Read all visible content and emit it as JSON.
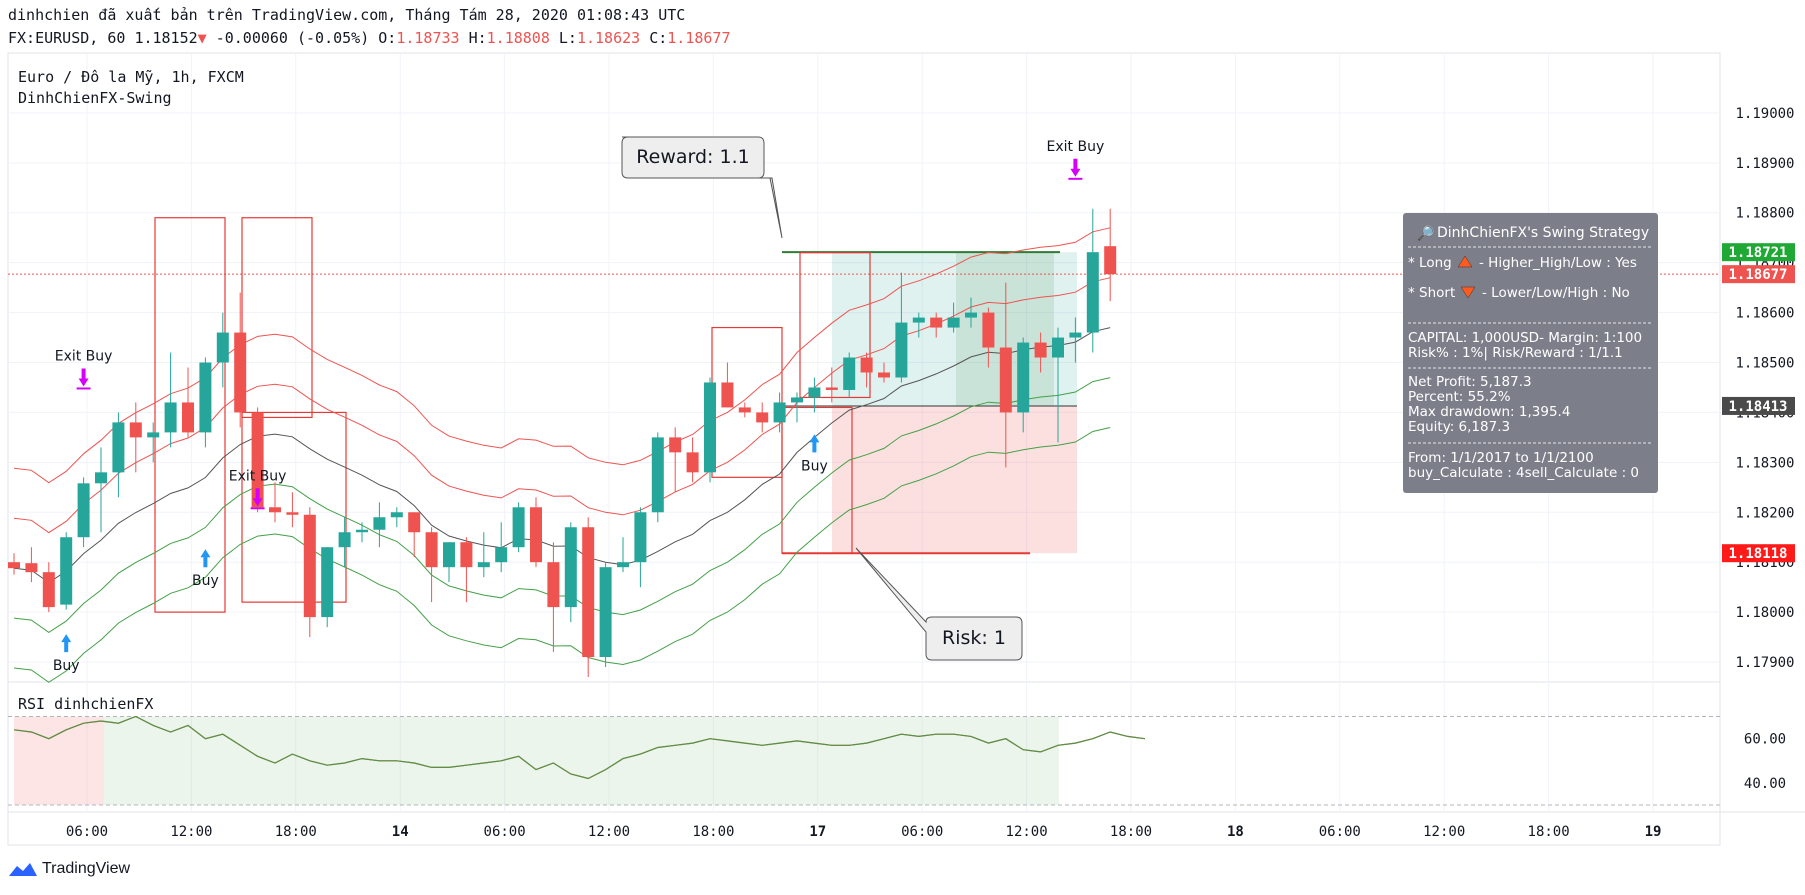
{
  "header": {
    "publish_line": "dinhchien đã xuất bản trên TradingView.com, Tháng Tám 28, 2020 01:08:43 UTC",
    "symbol": "FX:EURUSD, 60",
    "last": "1.18152",
    "change": "-0.00060 (-0.05%)",
    "o_label": "O:",
    "o": "1.18733",
    "h_label": "H:",
    "h": "1.18808",
    "l_label": "L:",
    "l": "1.18623",
    "c_label": "C:",
    "c": "1.18677"
  },
  "legend": {
    "title": "Euro / Đô la Mỹ, 1h, FXCM",
    "study": "DinhChienFX-Swing",
    "rsi": "RSI dinhchienFX"
  },
  "info_box": {
    "title": "DinhChienFX's Swing Strategy",
    "long": "* Long",
    "long_rest": "- Higher_High/Low : Yes",
    "short": "* Short",
    "short_rest": "- Lower/Low/High : No",
    "capital": "CAPITAL: 1,000USD- Margin: 1:100",
    "risk": "Risk% : 1%| Risk/Reward : 1/1.1",
    "net_profit": "Net Profit: 5,187.3",
    "percent": "Percent: 55.2%",
    "drawdown": "Max drawdown: 1,395.4",
    "equity": "Equity: 6,187.3",
    "from": "From: 1/1/2017 to 1/1/2100",
    "calc": "buy_Calculate : 4sell_Calculate : 0"
  },
  "callouts": {
    "reward": "Reward: 1.1",
    "risk": "Risk: 1"
  },
  "signals": {
    "buy": "Buy",
    "exit_buy": "Exit Buy"
  },
  "price_tags": [
    {
      "value": "1.18721",
      "color": "#1fa833"
    },
    {
      "value": "1.18677",
      "color": "#ef5350"
    },
    {
      "value": "1.18413",
      "color": "#4a4a4a"
    },
    {
      "value": "1.18118",
      "color": "#ff1a1a"
    }
  ],
  "brand": "TradingView",
  "colors": {
    "up": "#26a69a",
    "down": "#ef5350",
    "box_bg": "#787b86"
  },
  "chart_data": [
    {
      "type": "candlestick",
      "price_ticks": [
        "1.19000",
        "1.18900",
        "1.18800",
        "1.18700",
        "1.18600",
        "1.18500",
        "1.18400",
        "1.18300",
        "1.18200",
        "1.18100",
        "1.18000",
        "1.17900"
      ],
      "ylim": [
        1.1786,
        1.1912
      ],
      "time_ticks": [
        "06:00",
        "12:00",
        "18:00",
        "14",
        "06:00",
        "12:00",
        "18:00",
        "17",
        "06:00",
        "12:00",
        "18:00",
        "18",
        "06:00",
        "12:00",
        "18:00",
        "19"
      ],
      "candles": [
        [
          1.181,
          1.18118,
          1.18075,
          1.18088
        ],
        [
          1.18098,
          1.1813,
          1.1806,
          1.1808
        ],
        [
          1.1808,
          1.181,
          1.18,
          1.1801
        ],
        [
          1.18015,
          1.1816,
          1.18005,
          1.1815
        ],
        [
          1.1815,
          1.1827,
          1.1813,
          1.18258
        ],
        [
          1.18258,
          1.1833,
          1.1816,
          1.1828
        ],
        [
          1.1828,
          1.184,
          1.1823,
          1.1838
        ],
        [
          1.1838,
          1.1842,
          1.1828,
          1.1835
        ],
        [
          1.1835,
          1.1838,
          1.183,
          1.1836
        ],
        [
          1.1836,
          1.1852,
          1.1833,
          1.1842
        ],
        [
          1.1842,
          1.1849,
          1.1835,
          1.1836
        ],
        [
          1.1836,
          1.1851,
          1.1833,
          1.185
        ],
        [
          1.185,
          1.186,
          1.1845,
          1.1856
        ],
        [
          1.1856,
          1.1864,
          1.1837,
          1.184
        ],
        [
          1.184,
          1.1841,
          1.182,
          1.1821
        ],
        [
          1.1821,
          1.1826,
          1.1818,
          1.182
        ],
        [
          1.182,
          1.1824,
          1.1817,
          1.18195
        ],
        [
          1.18195,
          1.1821,
          1.1795,
          1.1799
        ],
        [
          1.1799,
          1.1813,
          1.1797,
          1.1813
        ],
        [
          1.1813,
          1.1819,
          1.1809,
          1.1816
        ],
        [
          1.1816,
          1.1818,
          1.1814,
          1.18165
        ],
        [
          1.18165,
          1.1822,
          1.1813,
          1.1819
        ],
        [
          1.1819,
          1.1821,
          1.1817,
          1.182
        ],
        [
          1.182,
          1.182,
          1.1811,
          1.1816
        ],
        [
          1.1816,
          1.1817,
          1.1802,
          1.1809
        ],
        [
          1.1809,
          1.1814,
          1.1806,
          1.1814
        ],
        [
          1.1814,
          1.1815,
          1.1802,
          1.1809
        ],
        [
          1.1809,
          1.1816,
          1.1807,
          1.181
        ],
        [
          1.181,
          1.1818,
          1.1808,
          1.1813
        ],
        [
          1.1813,
          1.1822,
          1.1812,
          1.1821
        ],
        [
          1.1821,
          1.1823,
          1.1809,
          1.181
        ],
        [
          1.181,
          1.1814,
          1.1792,
          1.1801
        ],
        [
          1.1801,
          1.1818,
          1.1798,
          1.1817
        ],
        [
          1.1817,
          1.1819,
          1.1787,
          1.1791
        ],
        [
          1.1791,
          1.181,
          1.1789,
          1.1809
        ],
        [
          1.1809,
          1.1815,
          1.1808,
          1.181
        ],
        [
          1.181,
          1.1821,
          1.1805,
          1.182
        ],
        [
          1.182,
          1.1836,
          1.1818,
          1.1835
        ],
        [
          1.1835,
          1.1837,
          1.1824,
          1.1832
        ],
        [
          1.1832,
          1.1835,
          1.1826,
          1.1828
        ],
        [
          1.1828,
          1.1847,
          1.1826,
          1.1846
        ],
        [
          1.1846,
          1.185,
          1.1841,
          1.1841
        ],
        [
          1.1841,
          1.1842,
          1.1839,
          1.184
        ],
        [
          1.184,
          1.1842,
          1.1836,
          1.1838
        ],
        [
          1.1838,
          1.1844,
          1.1836,
          1.1842
        ],
        [
          1.1842,
          1.1844,
          1.1838,
          1.1843
        ],
        [
          1.1843,
          1.1847,
          1.184,
          1.1845
        ],
        [
          1.1845,
          1.1849,
          1.1842,
          1.18445
        ],
        [
          1.18445,
          1.1852,
          1.1843,
          1.1851
        ],
        [
          1.1851,
          1.1852,
          1.1845,
          1.1848
        ],
        [
          1.1848,
          1.185,
          1.1846,
          1.1847
        ],
        [
          1.1847,
          1.1868,
          1.1846,
          1.1858
        ],
        [
          1.1858,
          1.186,
          1.1855,
          1.1859
        ],
        [
          1.1859,
          1.186,
          1.1855,
          1.1857
        ],
        [
          1.1857,
          1.1862,
          1.1856,
          1.1859
        ],
        [
          1.1859,
          1.1863,
          1.1857,
          1.186
        ],
        [
          1.186,
          1.1861,
          1.1849,
          1.1853
        ],
        [
          1.1853,
          1.1866,
          1.1829,
          1.184
        ],
        [
          1.184,
          1.1855,
          1.1836,
          1.1854
        ],
        [
          1.1854,
          1.1856,
          1.1848,
          1.1851
        ],
        [
          1.1851,
          1.1857,
          1.1834,
          1.1855
        ],
        [
          1.1855,
          1.1859,
          1.185,
          1.1856
        ],
        [
          1.1856,
          1.18808,
          1.1852,
          1.18721
        ],
        [
          1.18733,
          1.18808,
          1.18623,
          1.18677
        ]
      ]
    },
    {
      "type": "line",
      "title": "RSI dinhchienFX",
      "y_ticks": [
        "60.00",
        "40.00"
      ],
      "ylim": [
        30,
        82
      ],
      "values": [
        64,
        63,
        60,
        64,
        67,
        68,
        67,
        70,
        66,
        63,
        66,
        60,
        62,
        57,
        52,
        49,
        53,
        50,
        48,
        49,
        51,
        50,
        50,
        49,
        47,
        47,
        48,
        49,
        50,
        52,
        46,
        49,
        44,
        42,
        46,
        51,
        53,
        56,
        57,
        58,
        60,
        59,
        58,
        57,
        58,
        59,
        58,
        57,
        57,
        58,
        60,
        62,
        61,
        62,
        62,
        61,
        58,
        60,
        55,
        54,
        57,
        58,
        60,
        63,
        61,
        60
      ]
    }
  ]
}
